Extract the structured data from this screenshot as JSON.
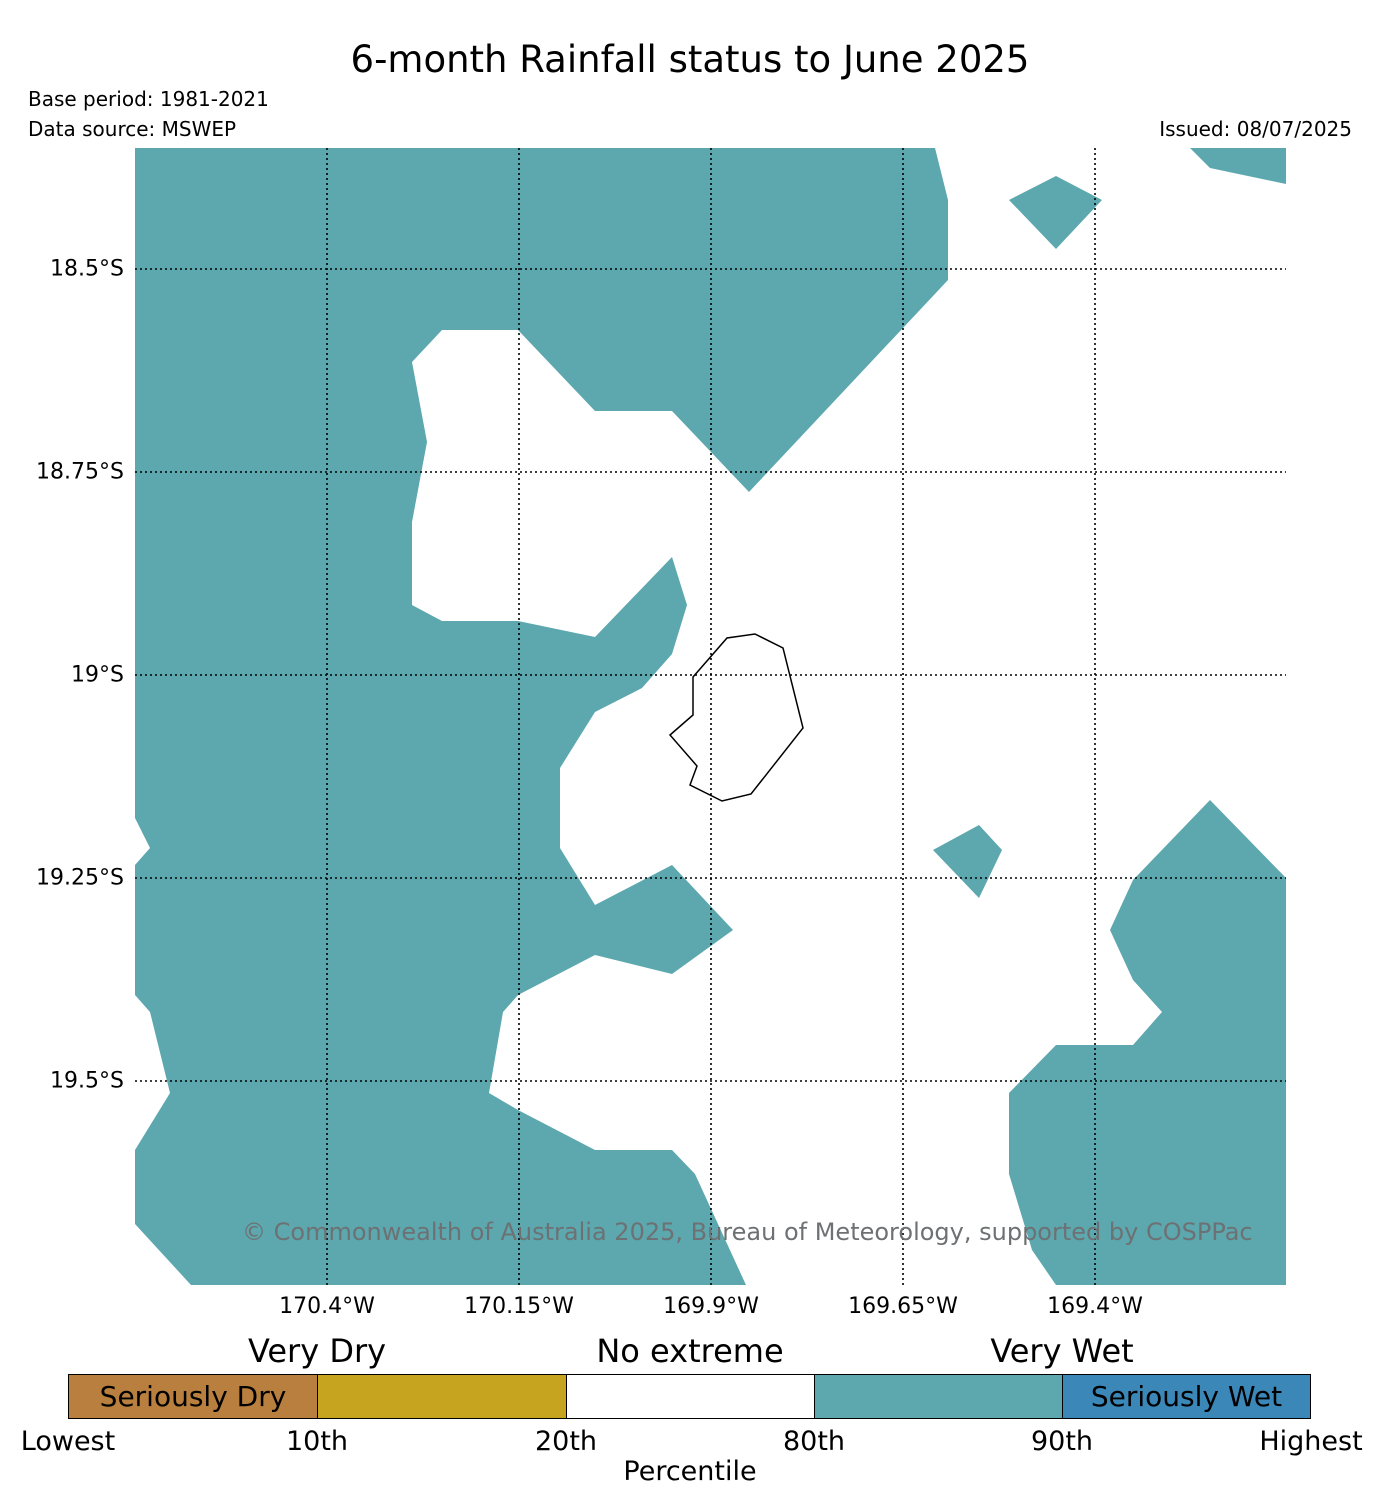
{
  "title": "6-month Rainfall status to June 2025",
  "base_period": "Base period: 1981-2021",
  "data_source": "Data source: MSWEP",
  "issued": "Issued: 08/07/2025",
  "copyright": "© Commonwealth of Australia 2025, Bureau of Meteorology, supported by COSPPac",
  "map": {
    "lat_labels": [
      "18.5°S",
      "18.75°S",
      "19°S",
      "19.25°S",
      "19.5°S"
    ],
    "lon_labels": [
      "170.4°W",
      "170.15°W",
      "169.9°W",
      "169.65°W",
      "169.4°W"
    ],
    "grid": "dotted",
    "region_colors": {
      "very_wet": "#5ca8ae",
      "no_extreme": "#ffffff",
      "coastline": "#000000"
    }
  },
  "legend": {
    "category_labels": [
      "Very Dry",
      "No extreme",
      "Very Wet"
    ],
    "segments": [
      {
        "label": "Seriously Dry",
        "color": "#b87f3e"
      },
      {
        "label": "",
        "color": "#c6a420"
      },
      {
        "label": "",
        "color": "#ffffff"
      },
      {
        "label": "",
        "color": "#5ca8ae"
      },
      {
        "label": "Seriously Wet",
        "color": "#3a87b8"
      }
    ],
    "percentile_labels": [
      "Lowest",
      "10th",
      "20th",
      "80th",
      "90th",
      "Highest"
    ],
    "axis_label": "Percentile"
  }
}
